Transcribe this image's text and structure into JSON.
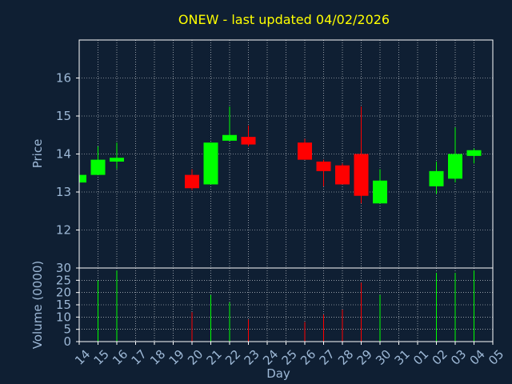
{
  "chart_data": {
    "type": "candlestick",
    "title": "ONEW - last updated 04/02/2026",
    "xlabel": "Day",
    "price_axis": {
      "label": "Price",
      "ylim": [
        11,
        17
      ],
      "ticks": [
        12,
        13,
        14,
        15,
        16
      ]
    },
    "volume_axis": {
      "label": "Volume (0000)",
      "ylim": [
        0,
        30
      ],
      "ticks": [
        0,
        5,
        10,
        15,
        20,
        25,
        30
      ]
    },
    "x_tick_labels": [
      "14",
      "15",
      "16",
      "17",
      "18",
      "19",
      "20",
      "21",
      "22",
      "23",
      "24",
      "25",
      "26",
      "27",
      "28",
      "29",
      "30",
      "31",
      "01",
      "02",
      "03",
      "04",
      "05"
    ],
    "grid": true,
    "colors": {
      "up": "#00ff00",
      "down": "#ff0000",
      "title": "#ffff00",
      "label": "#9db8d6",
      "background": "#0f1f33",
      "axes": "#ffffff"
    },
    "candles": [
      {
        "day": "14",
        "open": 13.25,
        "close": 13.45,
        "high": 13.45,
        "low": 13.25,
        "volume": 0
      },
      {
        "day": "15",
        "open": 13.45,
        "close": 13.85,
        "high": 14.2,
        "low": 13.45,
        "volume": 25
      },
      {
        "day": "16",
        "open": 13.8,
        "close": 13.9,
        "high": 14.3,
        "low": 13.6,
        "volume": 29
      },
      {
        "day": "20",
        "open": 13.45,
        "close": 13.1,
        "high": 13.6,
        "low": 13.05,
        "volume": 12
      },
      {
        "day": "21",
        "open": 13.2,
        "close": 14.3,
        "high": 14.3,
        "low": 13.2,
        "volume": 19
      },
      {
        "day": "22",
        "open": 14.35,
        "close": 14.5,
        "high": 15.25,
        "low": 14.35,
        "volume": 16
      },
      {
        "day": "23",
        "open": 14.45,
        "close": 14.25,
        "high": 14.75,
        "low": 14.2,
        "volume": 9
      },
      {
        "day": "26",
        "open": 14.3,
        "close": 13.85,
        "high": 14.4,
        "low": 13.85,
        "volume": 8
      },
      {
        "day": "27",
        "open": 13.8,
        "close": 13.55,
        "high": 13.85,
        "low": 13.15,
        "volume": 11
      },
      {
        "day": "28",
        "open": 13.7,
        "close": 13.2,
        "high": 13.75,
        "low": 13.2,
        "volume": 13
      },
      {
        "day": "29",
        "open": 14.0,
        "close": 12.9,
        "high": 15.25,
        "low": 12.7,
        "volume": 24
      },
      {
        "day": "30",
        "open": 12.7,
        "close": 13.3,
        "high": 13.6,
        "low": 12.7,
        "volume": 19
      },
      {
        "day": "02",
        "open": 13.15,
        "close": 13.55,
        "high": 13.8,
        "low": 12.95,
        "volume": 28
      },
      {
        "day": "03",
        "open": 13.35,
        "close": 14.0,
        "high": 14.7,
        "low": 13.25,
        "volume": 28
      },
      {
        "day": "04",
        "open": 13.95,
        "close": 14.1,
        "high": 14.15,
        "low": 13.75,
        "volume": 29
      }
    ]
  }
}
